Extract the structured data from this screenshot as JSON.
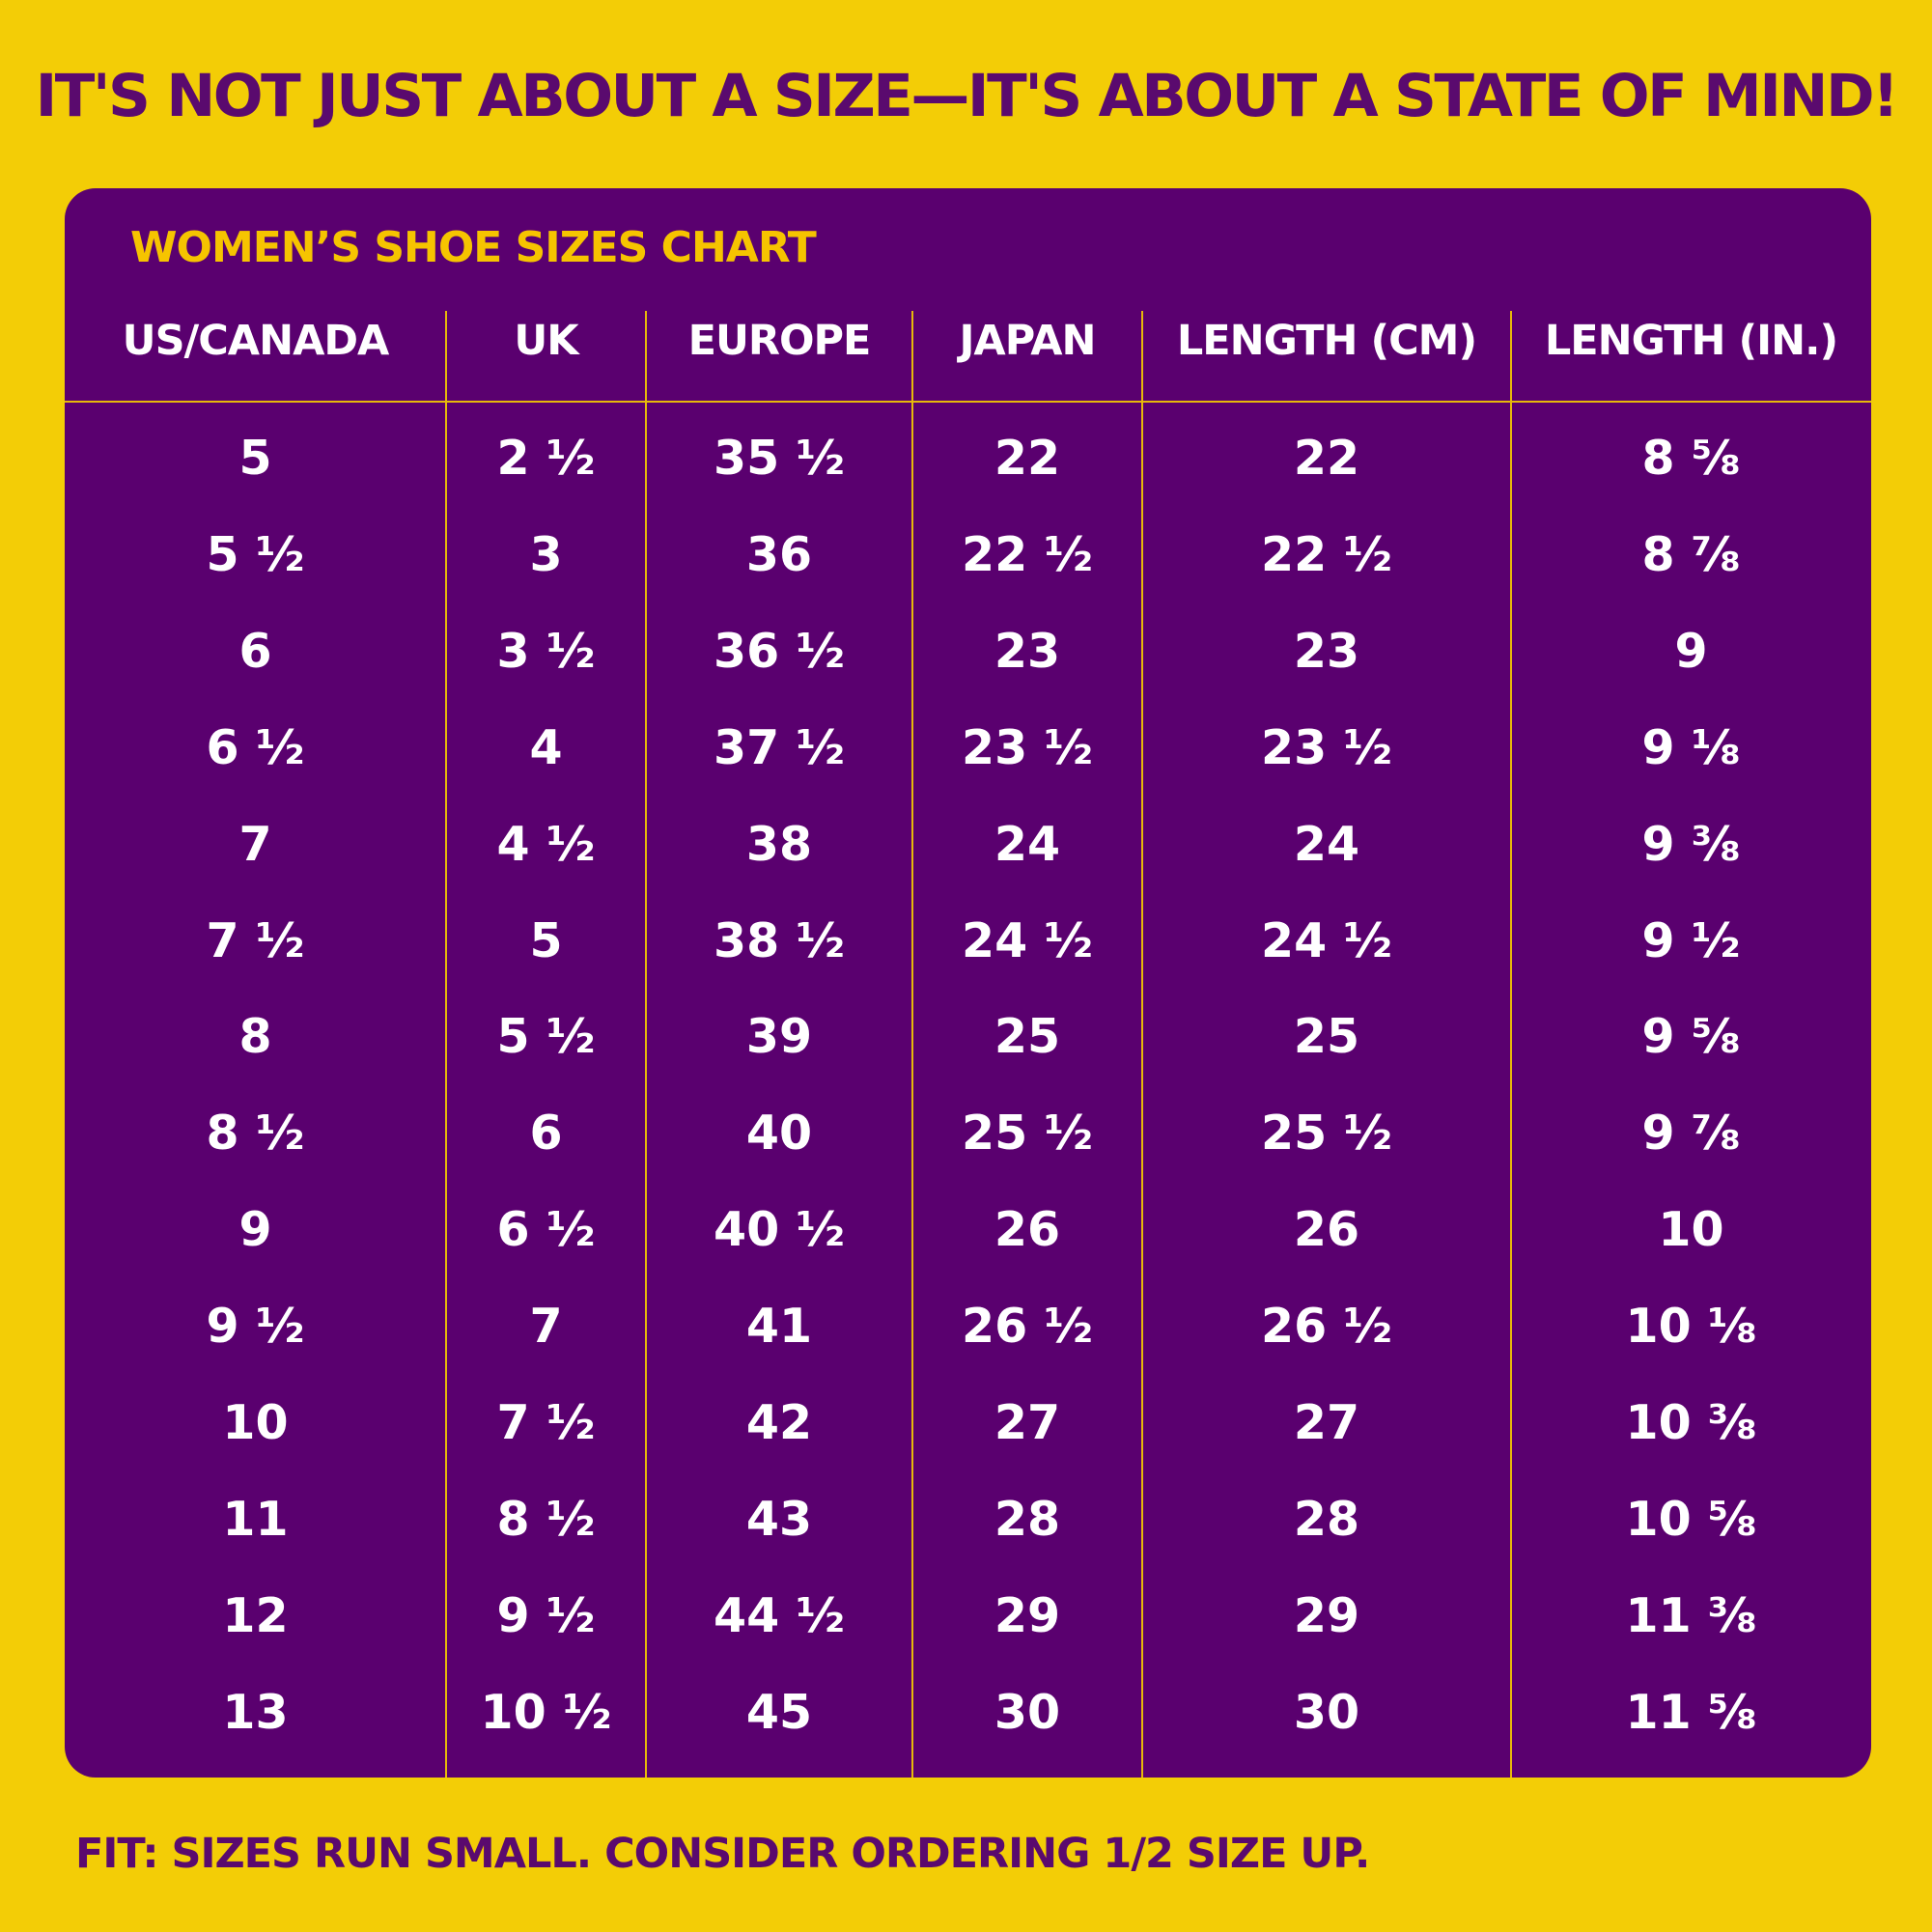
{
  "headline": "IT'S NOT JUST ABOUT A SIZE—IT'S ABOUT A STATE OF MIND!",
  "chart_title": "WOMEN’S SHOE SIZES CHART",
  "colors": {
    "background": "#f3cd06",
    "panel": "#5a006f",
    "accent_text": "#f6c400",
    "headline_text": "#5a0a6e",
    "cell_text": "#ffffff",
    "divider": "#e7b90a"
  },
  "table": {
    "columns": [
      "US/CANADA",
      "UK",
      "EUROPE",
      "JAPAN",
      "LENGTH (CM)",
      "LENGTH (IN.)"
    ],
    "rows": [
      [
        "5",
        "2 ½",
        "35 ½",
        "22",
        "22",
        "8 ⅝"
      ],
      [
        "5 ½",
        "3",
        "36",
        "22 ½",
        "22 ½",
        "8 ⅞"
      ],
      [
        "6",
        "3 ½",
        "36 ½",
        "23",
        "23",
        "9"
      ],
      [
        "6 ½",
        "4",
        "37 ½",
        "23 ½",
        "23 ½",
        "9 ⅛"
      ],
      [
        "7",
        "4 ½",
        "38",
        "24",
        "24",
        "9 ⅜"
      ],
      [
        "7 ½",
        "5",
        "38 ½",
        "24 ½",
        "24 ½",
        "9 ½"
      ],
      [
        "8",
        "5 ½",
        "39",
        "25",
        "25",
        "9 ⅝"
      ],
      [
        "8 ½",
        "6",
        "40",
        "25 ½",
        "25 ½",
        "9 ⅞"
      ],
      [
        "9",
        "6 ½",
        "40 ½",
        "26",
        "26",
        "10"
      ],
      [
        "9 ½",
        "7",
        "41",
        "26 ½",
        "26 ½",
        "10 ⅛"
      ],
      [
        "10",
        "7 ½",
        "42",
        "27",
        "27",
        "10 ⅜"
      ],
      [
        "11",
        "8 ½",
        "43",
        "28",
        "28",
        "10 ⅝"
      ],
      [
        "12",
        "9 ½",
        "44 ½",
        "29",
        "29",
        "11 ⅜"
      ],
      [
        "13",
        "10 ½",
        "45",
        "30",
        "30",
        "11 ⅝"
      ]
    ]
  },
  "footer_note": "FIT: SIZES RUN SMALL. CONSIDER ORDERING 1/2 SIZE UP."
}
